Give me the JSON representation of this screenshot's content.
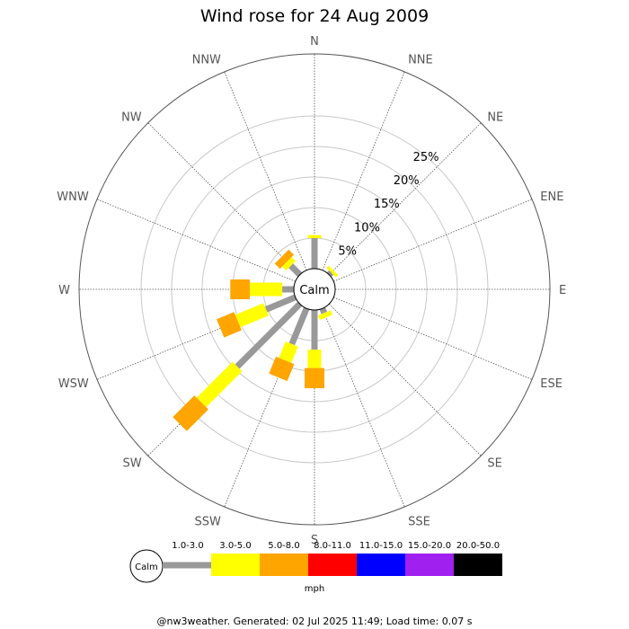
{
  "title": "Wind rose for 24 Aug 2009",
  "calm_label": "Calm",
  "units": "mph",
  "footer": "@nw3weather. Generated: 02 Jul 2025 11:49; Load time: 0.07 s",
  "chart_data": {
    "type": "windrose",
    "title": "Wind rose for 24 Aug 2009",
    "directions": [
      "N",
      "NNE",
      "NE",
      "ENE",
      "E",
      "ESE",
      "SE",
      "SSE",
      "S",
      "SSW",
      "SW",
      "WSW",
      "W",
      "WNW",
      "NW",
      "NNW"
    ],
    "rings_percent": [
      5,
      10,
      15,
      20,
      25
    ],
    "ring_labels": [
      "5%",
      "10%",
      "15%",
      "20%",
      "25%"
    ],
    "speed_bins": [
      {
        "label": "1.0-3.0",
        "color": "#999999"
      },
      {
        "label": "3.0-5.0",
        "color": "#ffff00"
      },
      {
        "label": "5.0-8.0",
        "color": "#ffa500"
      },
      {
        "label": "8.0-11.0",
        "color": "#ff0000"
      },
      {
        "label": "11.0-15.0",
        "color": "#0000ff"
      },
      {
        "label": "15.0-20.0",
        "color": "#a020f0"
      },
      {
        "label": "20.0-50.0",
        "color": "#000000"
      }
    ],
    "cumulative_percent": [
      [
        5.0,
        5.5,
        5.5
      ],
      [
        0,
        0,
        0
      ],
      [
        0.5,
        1.0,
        1.0
      ],
      [
        0,
        0,
        0
      ],
      [
        0,
        0,
        0
      ],
      [
        0,
        0,
        0
      ],
      [
        0,
        0,
        0
      ],
      [
        0.8,
        1.6,
        1.6
      ],
      [
        6.5,
        9.5,
        12.8
      ],
      [
        6.3,
        9.2,
        12.2
      ],
      [
        14.5,
        22.8,
        27.8
      ],
      [
        5.2,
        10.2,
        13.3
      ],
      [
        1.9,
        7.2,
        10.4
      ],
      [
        0,
        0,
        0
      ],
      [
        2.1,
        3.0,
        4.2
      ],
      [
        0,
        0,
        0
      ]
    ],
    "calm_percent": 0
  }
}
